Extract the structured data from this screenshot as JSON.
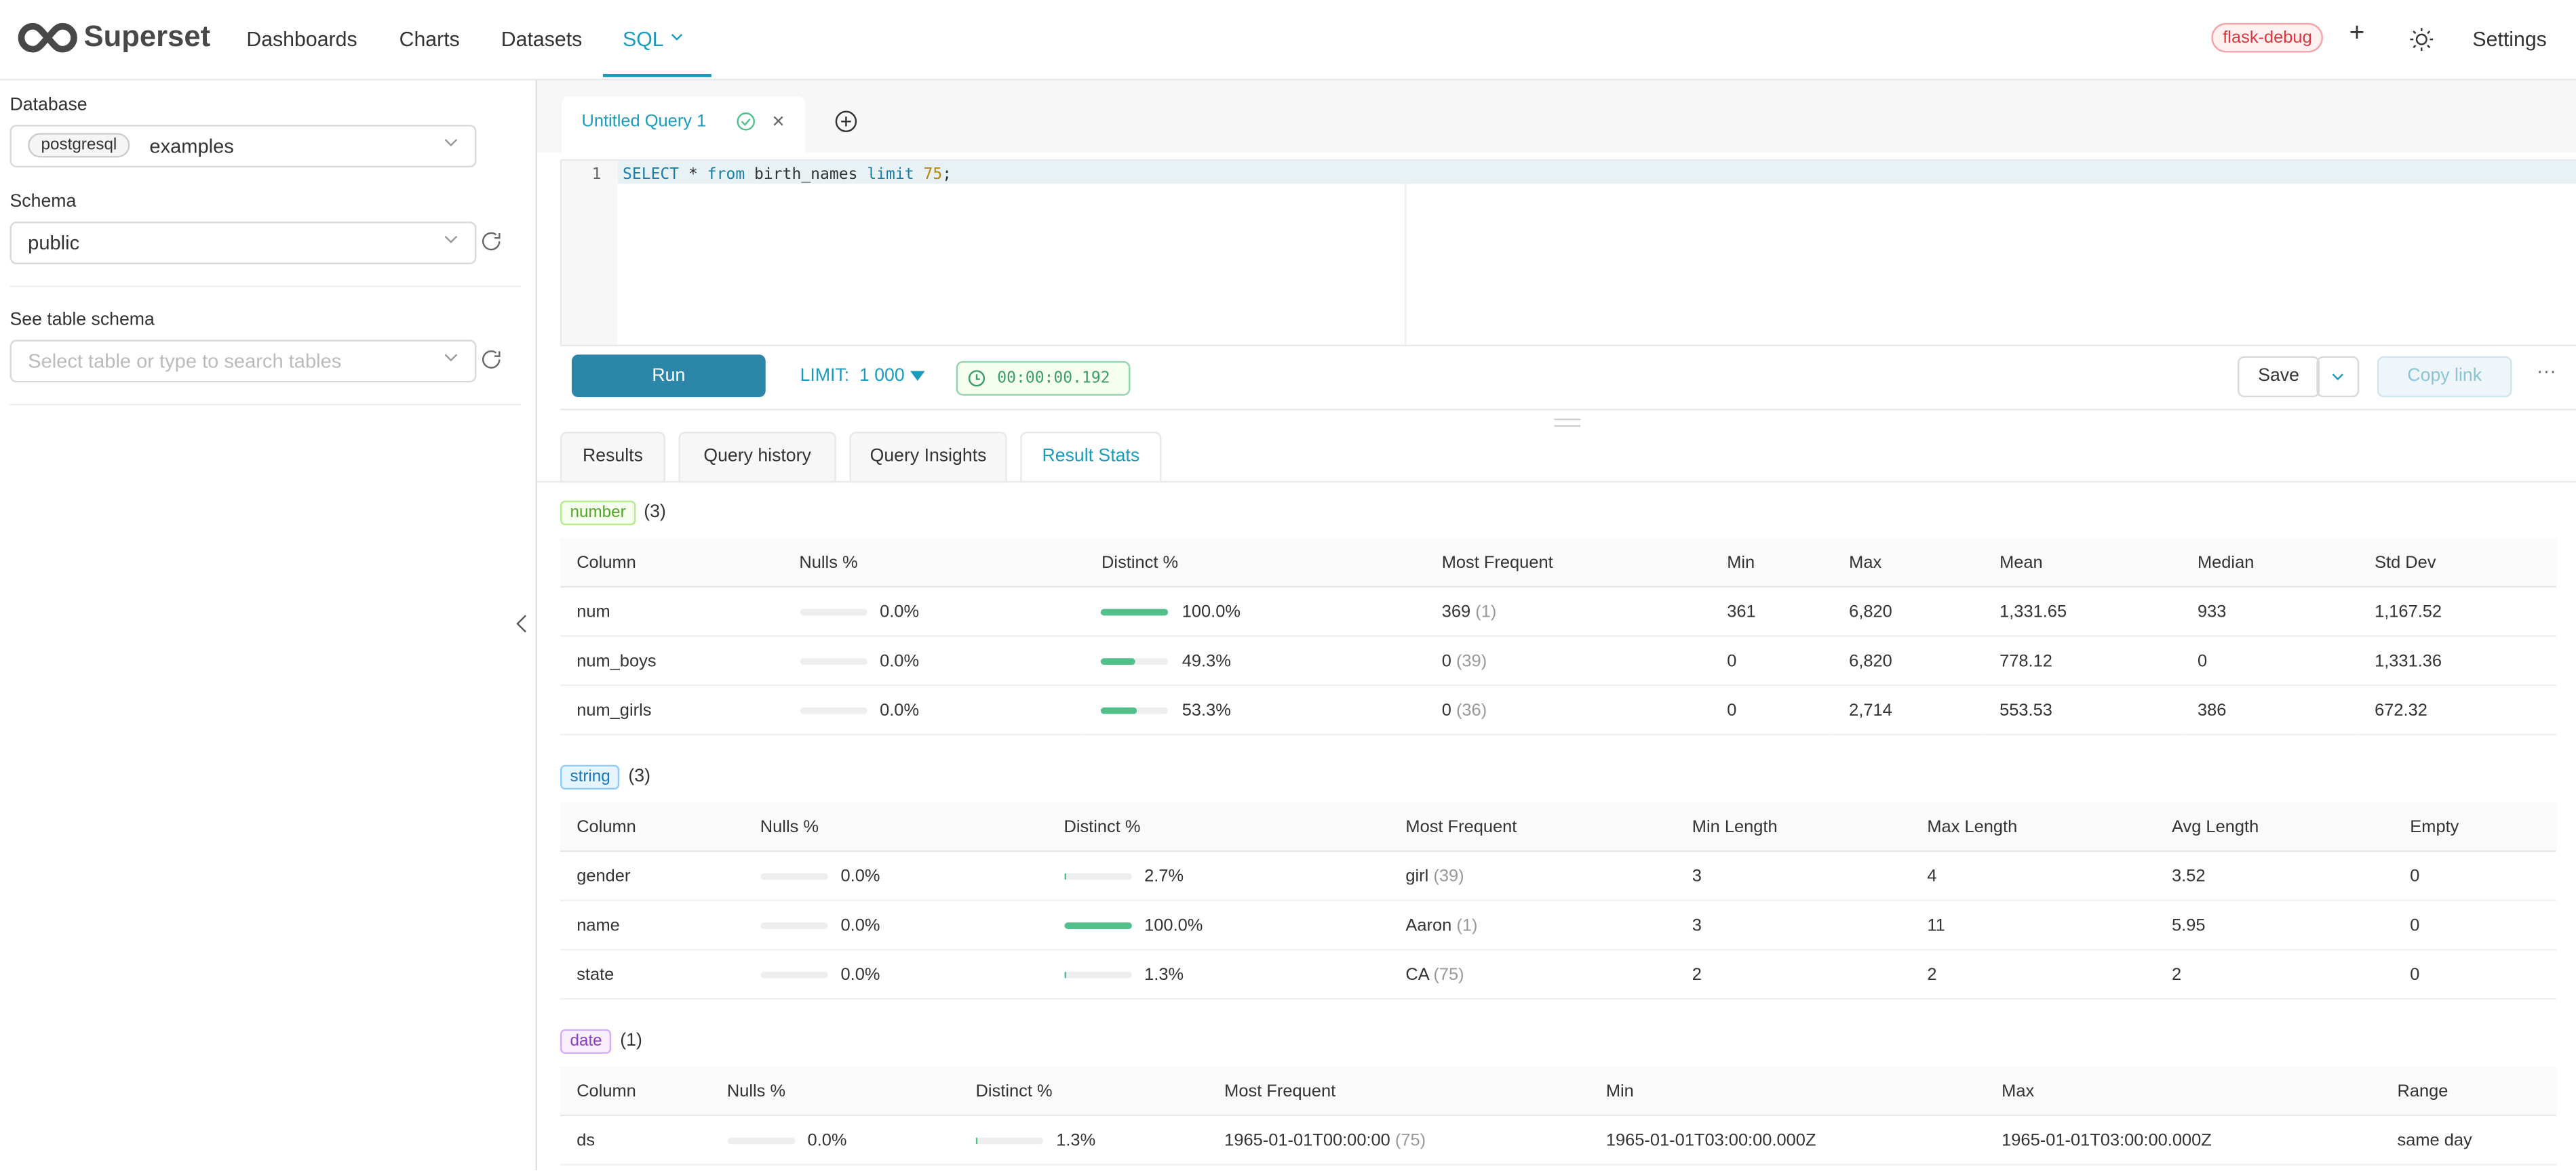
{
  "nav": {
    "brand": "Superset",
    "items": [
      "Dashboards",
      "Charts",
      "Datasets",
      "SQL"
    ],
    "env": "flask-debug",
    "settings": "Settings"
  },
  "sidebar": {
    "database_label": "Database",
    "database_engine": "postgresql",
    "database": "examples",
    "schema_label": "Schema",
    "schema": "public",
    "table_label": "See table schema",
    "table_placeholder": "Select table or type to search tables"
  },
  "editor": {
    "tab": "Untitled Query 1",
    "line_number": "1",
    "sql_tokens": [
      {
        "text": "SELECT",
        "kind": "keyword"
      },
      {
        "text": " * ",
        "kind": "plain"
      },
      {
        "text": "from",
        "kind": "keyword"
      },
      {
        "text": " birth_names ",
        "kind": "plain"
      },
      {
        "text": "limit",
        "kind": "keyword"
      },
      {
        "text": " ",
        "kind": "plain"
      },
      {
        "text": "75",
        "kind": "number"
      },
      {
        "text": ";",
        "kind": "plain"
      }
    ]
  },
  "toolbar": {
    "run": "Run",
    "limit_label": "LIMIT:",
    "limit": "1 000",
    "timer": "00:00:00.192",
    "save": "Save",
    "copy_link": "Copy link"
  },
  "result_tabs": {
    "tabs": [
      "Results",
      "Query history",
      "Query Insights",
      "Result Stats"
    ],
    "active": 3
  },
  "sections": [
    {
      "type": "number",
      "count": "(3)",
      "columns": [
        "Column",
        "Nulls %",
        "Distinct %",
        "Most Frequent",
        "Min",
        "Max",
        "Mean",
        "Median",
        "Std Dev"
      ],
      "rows": [
        [
          "num",
          "0.0%",
          "100.0%",
          {
            "text": "369",
            "count": "(1)"
          },
          "361",
          "6,820",
          "1,331.65",
          "933",
          "1,167.52"
        ],
        [
          "num_boys",
          "0.0%",
          "49.3%",
          {
            "text": "0",
            "count": "(39)"
          },
          "0",
          "6,820",
          "778.12",
          "0",
          "1,331.36"
        ],
        [
          "num_girls",
          "0.0%",
          "53.3%",
          {
            "text": "0",
            "count": "(36)"
          },
          "0",
          "2,714",
          "553.53",
          "386",
          "672.32"
        ]
      ]
    },
    {
      "type": "string",
      "count": "(3)",
      "columns": [
        "Column",
        "Nulls %",
        "Distinct %",
        "Most Frequent",
        "Min Length",
        "Max Length",
        "Avg Length",
        "Empty"
      ],
      "rows": [
        [
          "gender",
          "0.0%",
          "2.7%",
          {
            "text": "girl",
            "count": "(39)"
          },
          "3",
          "4",
          "3.52",
          "0"
        ],
        [
          "name",
          "0.0%",
          "100.0%",
          {
            "text": "Aaron",
            "count": "(1)"
          },
          "3",
          "11",
          "5.95",
          "0"
        ],
        [
          "state",
          "0.0%",
          "1.3%",
          {
            "text": "CA",
            "count": "(75)"
          },
          "2",
          "2",
          "2",
          "0"
        ]
      ]
    },
    {
      "type": "date",
      "count": "(1)",
      "columns": [
        "Column",
        "Nulls %",
        "Distinct %",
        "Most Frequent",
        "Min",
        "Max",
        "Range"
      ],
      "rows": [
        [
          "ds",
          "0.0%",
          "1.3%",
          {
            "text": "1965-01-01T00:00:00",
            "count": "(75)"
          },
          "1965-01-01T03:00:00.000Z",
          "1965-01-01T03:00:00.000Z",
          "same day"
        ]
      ]
    }
  ]
}
